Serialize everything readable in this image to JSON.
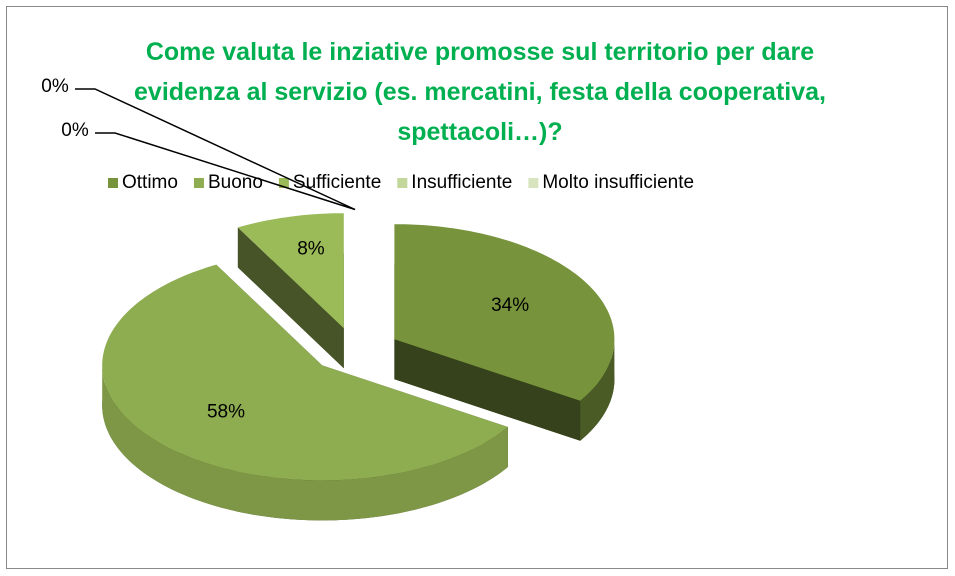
{
  "chart_data": {
    "type": "pie3d",
    "title": "Come valuta le inziative promosse sul territorio per dare evidenza al servizio (es. mercatini, festa della cooperativa, spettacoli…)?",
    "categories": [
      "Ottimo",
      "Buono",
      "Sufficiente",
      "Insufficiente",
      "Molto insufficiente"
    ],
    "values": [
      34,
      58,
      8,
      0,
      0
    ],
    "value_labels": [
      "34%",
      "58%",
      "8%",
      "0%",
      "0%"
    ],
    "colors": [
      "#77933c",
      "#8eac50",
      "#9bbb59",
      "#c3d69b",
      "#d7e4bd"
    ],
    "legend": "top",
    "exploded": true
  }
}
